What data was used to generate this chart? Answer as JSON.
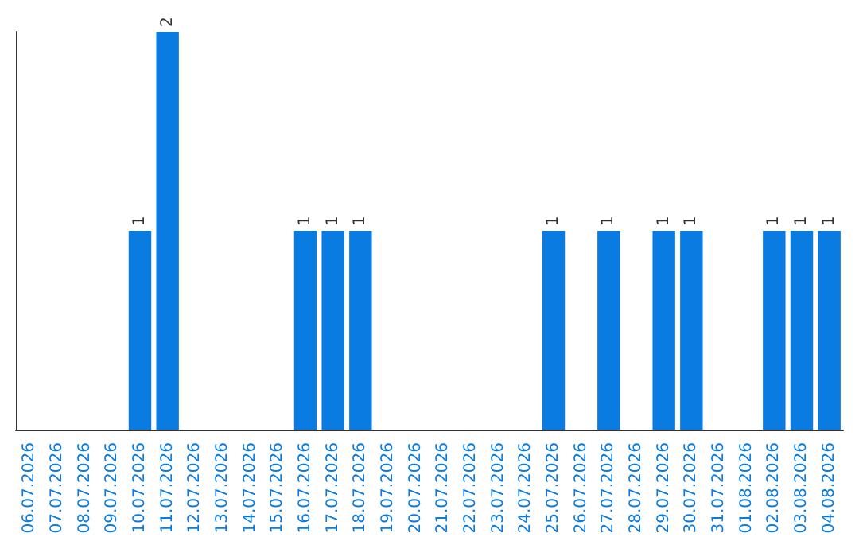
{
  "chart_data": {
    "type": "bar",
    "categories": [
      "06.07.2026",
      "07.07.2026",
      "08.07.2026",
      "09.07.2026",
      "10.07.2026",
      "11.07.2026",
      "12.07.2026",
      "13.07.2026",
      "14.07.2026",
      "15.07.2026",
      "16.07.2026",
      "17.07.2026",
      "18.07.2026",
      "19.07.2026",
      "20.07.2026",
      "21.07.2026",
      "22.07.2026",
      "23.07.2026",
      "24.07.2026",
      "25.07.2026",
      "26.07.2026",
      "27.07.2026",
      "28.07.2026",
      "29.07.2026",
      "30.07.2026",
      "31.07.2026",
      "01.08.2026",
      "02.08.2026",
      "03.08.2026",
      "04.08.2026"
    ],
    "values": [
      0,
      0,
      0,
      0,
      1,
      2,
      0,
      0,
      0,
      0,
      1,
      1,
      1,
      0,
      0,
      0,
      0,
      0,
      0,
      1,
      0,
      1,
      0,
      1,
      1,
      0,
      0,
      1,
      1,
      1
    ],
    "value_labels": [
      null,
      null,
      null,
      null,
      "1",
      "2",
      null,
      null,
      null,
      null,
      "1",
      "1",
      "1",
      null,
      null,
      null,
      null,
      null,
      null,
      "1",
      null,
      "1",
      null,
      "1",
      "1",
      null,
      null,
      "1",
      "1",
      "1"
    ],
    "color": "#0a7be0"
  }
}
